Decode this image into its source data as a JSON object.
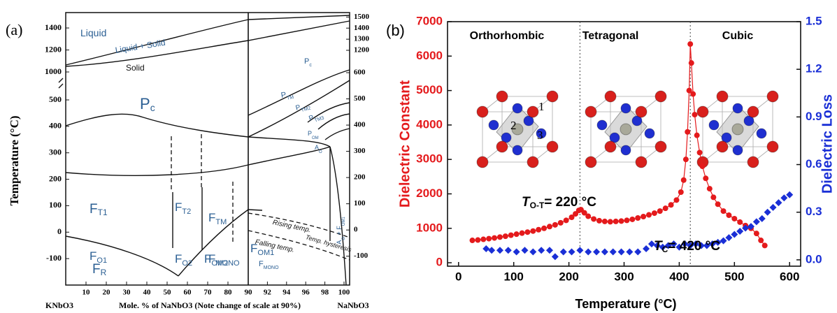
{
  "chart_data": [
    {
      "type": "phase-diagram",
      "panel_label": "(a)",
      "y_label": "Temperature (°C)",
      "x_label": "Mole. % of NaNbO3 (Note change of scale at 90%)",
      "x_end_labels": [
        "KNbO3",
        "NaNbO3"
      ],
      "xlim": [
        0,
        100
      ],
      "x_break": 90,
      "xticks": [
        10,
        20,
        30,
        40,
        50,
        60,
        70,
        80,
        90,
        92,
        94,
        96,
        98,
        100
      ],
      "ylim": [
        -200,
        1540
      ],
      "y_break": [
        500,
        1000
      ],
      "yticks": [
        -100,
        0,
        100,
        200,
        300,
        400,
        500,
        1000,
        1200,
        1400
      ],
      "y2lim": [
        -210,
        1540
      ],
      "y2_break": [
        600,
        1200
      ],
      "y2ticks": [
        -100,
        0,
        100,
        200,
        300,
        400,
        500,
        600,
        1200,
        1300,
        1400,
        1500
      ],
      "region_labels": [
        [
          "Liquid"
        ],
        [
          "Liquid + Solid"
        ],
        [
          "Solid"
        ],
        [
          "P",
          "c"
        ],
        [
          "P",
          "c"
        ],
        [
          "P",
          "TM"
        ],
        [
          "P",
          "TM2"
        ],
        [
          "P",
          "TM3"
        ],
        [
          "P",
          "OM"
        ],
        [
          "A",
          "O"
        ],
        [
          "F",
          "T1"
        ],
        [
          "F",
          "T2"
        ],
        [
          "F",
          "TM"
        ],
        [
          "F",
          "O1"
        ],
        [
          "F",
          "O2"
        ],
        [
          "F",
          "OM2"
        ],
        [
          "F",
          "OM1"
        ],
        [
          "A",
          "O",
          " + F",
          "OM1"
        ],
        [
          "F",
          "R"
        ],
        [
          "F",
          "MONO"
        ],
        [
          "F",
          "MONO"
        ],
        [
          "Rising temp."
        ],
        [
          "Temp. hysteresis"
        ],
        [
          "Falling temp."
        ]
      ]
    },
    {
      "type": "scatter",
      "panel_label": "(b)",
      "x_label": "Temperature (°C)",
      "y_label": "Dielectric Constant",
      "y2_label": "Dielectric Loss",
      "xlim": [
        -20,
        620
      ],
      "xticks": [
        0,
        100,
        200,
        300,
        400,
        500,
        600
      ],
      "ylim": [
        -100,
        7000
      ],
      "yticks": [
        0,
        1000,
        2000,
        3000,
        4000,
        5000,
        6000,
        7000
      ],
      "y2lim": [
        -0.04,
        1.5
      ],
      "y2ticks": [
        {
          "value": 0,
          "label": "0.0"
        },
        0.3,
        0.6,
        0.9,
        1.2,
        1.5
      ],
      "phase_labels": [
        "Orthorhombic",
        "Tetragonal",
        "Cubic"
      ],
      "phase_boundaries": [
        220,
        420
      ],
      "site_labels": [
        "1",
        "2",
        "3"
      ],
      "annotations": [
        [
          "T",
          "O-T",
          "= 220 °C"
        ],
        [
          "T",
          "C",
          "= 420 °C"
        ]
      ],
      "series": [
        {
          "color": "#e41a1c",
          "marker": "circle",
          "x": [
            25,
            35,
            45,
            55,
            65,
            75,
            85,
            95,
            105,
            115,
            125,
            135,
            145,
            155,
            165,
            175,
            185,
            195,
            205,
            212,
            218,
            222,
            228,
            235,
            245,
            255,
            265,
            275,
            285,
            295,
            305,
            315,
            325,
            335,
            345,
            355,
            365,
            375,
            385,
            395,
            403,
            408,
            412,
            415,
            418,
            420,
            422,
            425,
            428,
            432,
            437,
            442,
            448,
            455,
            462,
            470,
            480,
            490,
            500,
            510,
            520,
            530,
            540,
            548,
            555
          ],
          "values": [
            650,
            660,
            680,
            700,
            720,
            745,
            770,
            800,
            830,
            860,
            890,
            920,
            960,
            1000,
            1050,
            1100,
            1160,
            1230,
            1320,
            1420,
            1520,
            1540,
            1450,
            1350,
            1270,
            1220,
            1200,
            1190,
            1200,
            1210,
            1230,
            1260,
            1300,
            1340,
            1390,
            1440,
            1500,
            1580,
            1680,
            1820,
            2050,
            2400,
            3000,
            3800,
            5000,
            6350,
            5800,
            4900,
            4300,
            3700,
            3200,
            2800,
            2450,
            2150,
            1900,
            1700,
            1500,
            1380,
            1280,
            1180,
            1080,
            1000,
            850,
            650,
            500
          ]
        },
        {
          "color": "#1a2fd6",
          "marker": "diamond",
          "axis": "y2",
          "x": [
            50,
            60,
            75,
            90,
            105,
            120,
            135,
            150,
            165,
            175,
            190,
            205,
            220,
            235,
            250,
            265,
            280,
            295,
            310,
            325,
            340,
            350,
            360,
            370,
            380,
            390,
            400,
            410,
            420,
            430,
            440,
            450,
            460,
            470,
            480,
            490,
            500,
            510,
            520,
            530,
            540,
            550,
            560,
            570,
            580,
            590,
            600
          ],
          "values": [
            0.07,
            0.06,
            0.06,
            0.06,
            0.05,
            0.06,
            0.05,
            0.06,
            0.06,
            0.02,
            0.05,
            0.05,
            0.06,
            0.05,
            0.05,
            0.05,
            0.05,
            0.05,
            0.05,
            0.05,
            0.07,
            0.1,
            0.09,
            0.08,
            0.09,
            0.1,
            0.08,
            0.1,
            0.09,
            0.1,
            0.09,
            0.09,
            0.1,
            0.11,
            0.12,
            0.14,
            0.16,
            0.18,
            0.2,
            0.21,
            0.24,
            0.26,
            0.3,
            0.33,
            0.36,
            0.39,
            0.41
          ]
        }
      ]
    }
  ]
}
